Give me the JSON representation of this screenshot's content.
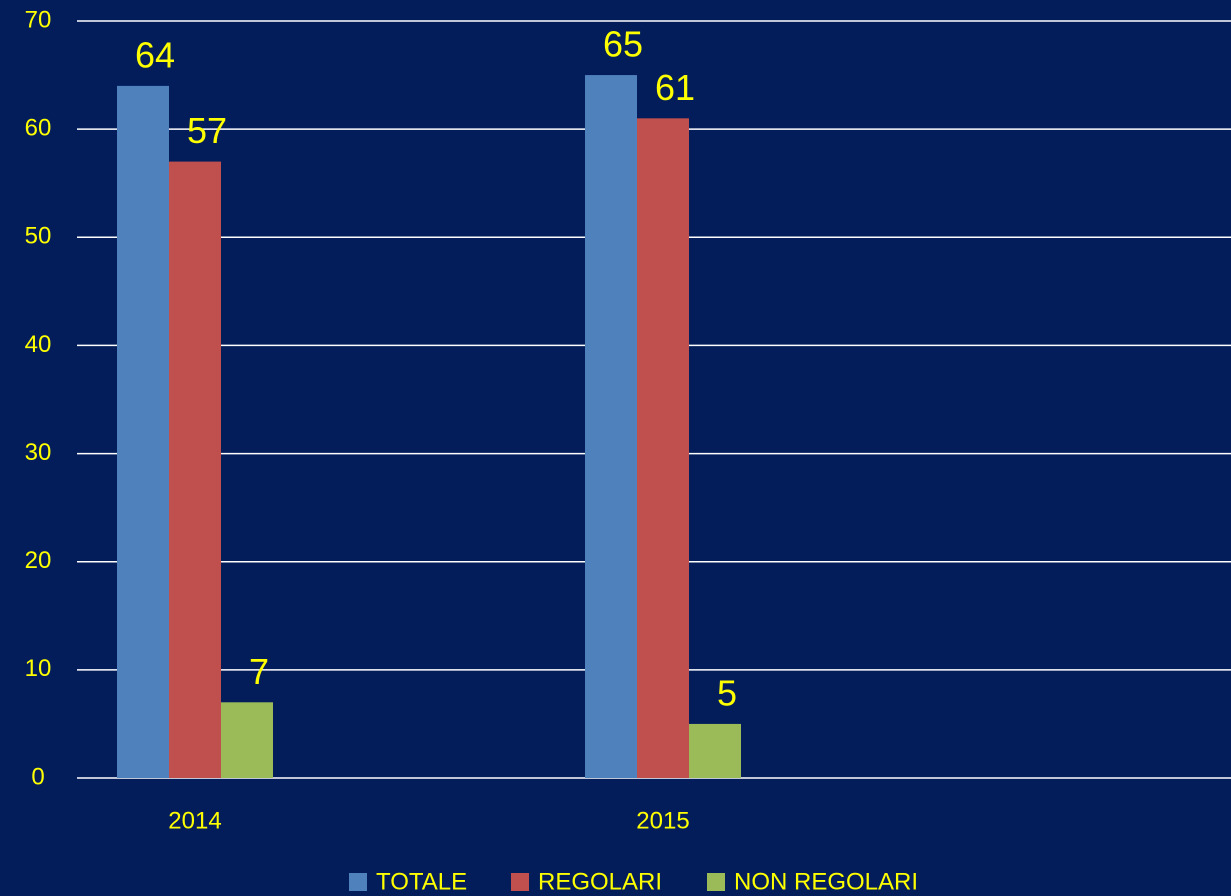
{
  "chart_data": {
    "type": "bar",
    "categories": [
      "2014",
      "2015"
    ],
    "series": [
      {
        "name": "TOTALE",
        "color": "#4f81bd",
        "values": [
          64,
          65
        ]
      },
      {
        "name": "REGOLARI",
        "color": "#c0504d",
        "values": [
          57,
          61
        ]
      },
      {
        "name": "NON REGOLARI",
        "color": "#9bbb59",
        "values": [
          7,
          5
        ]
      }
    ],
    "ylim": [
      0,
      70
    ],
    "yticks": [
      0,
      10,
      20,
      30,
      40,
      50,
      60,
      70
    ],
    "grid": true
  }
}
